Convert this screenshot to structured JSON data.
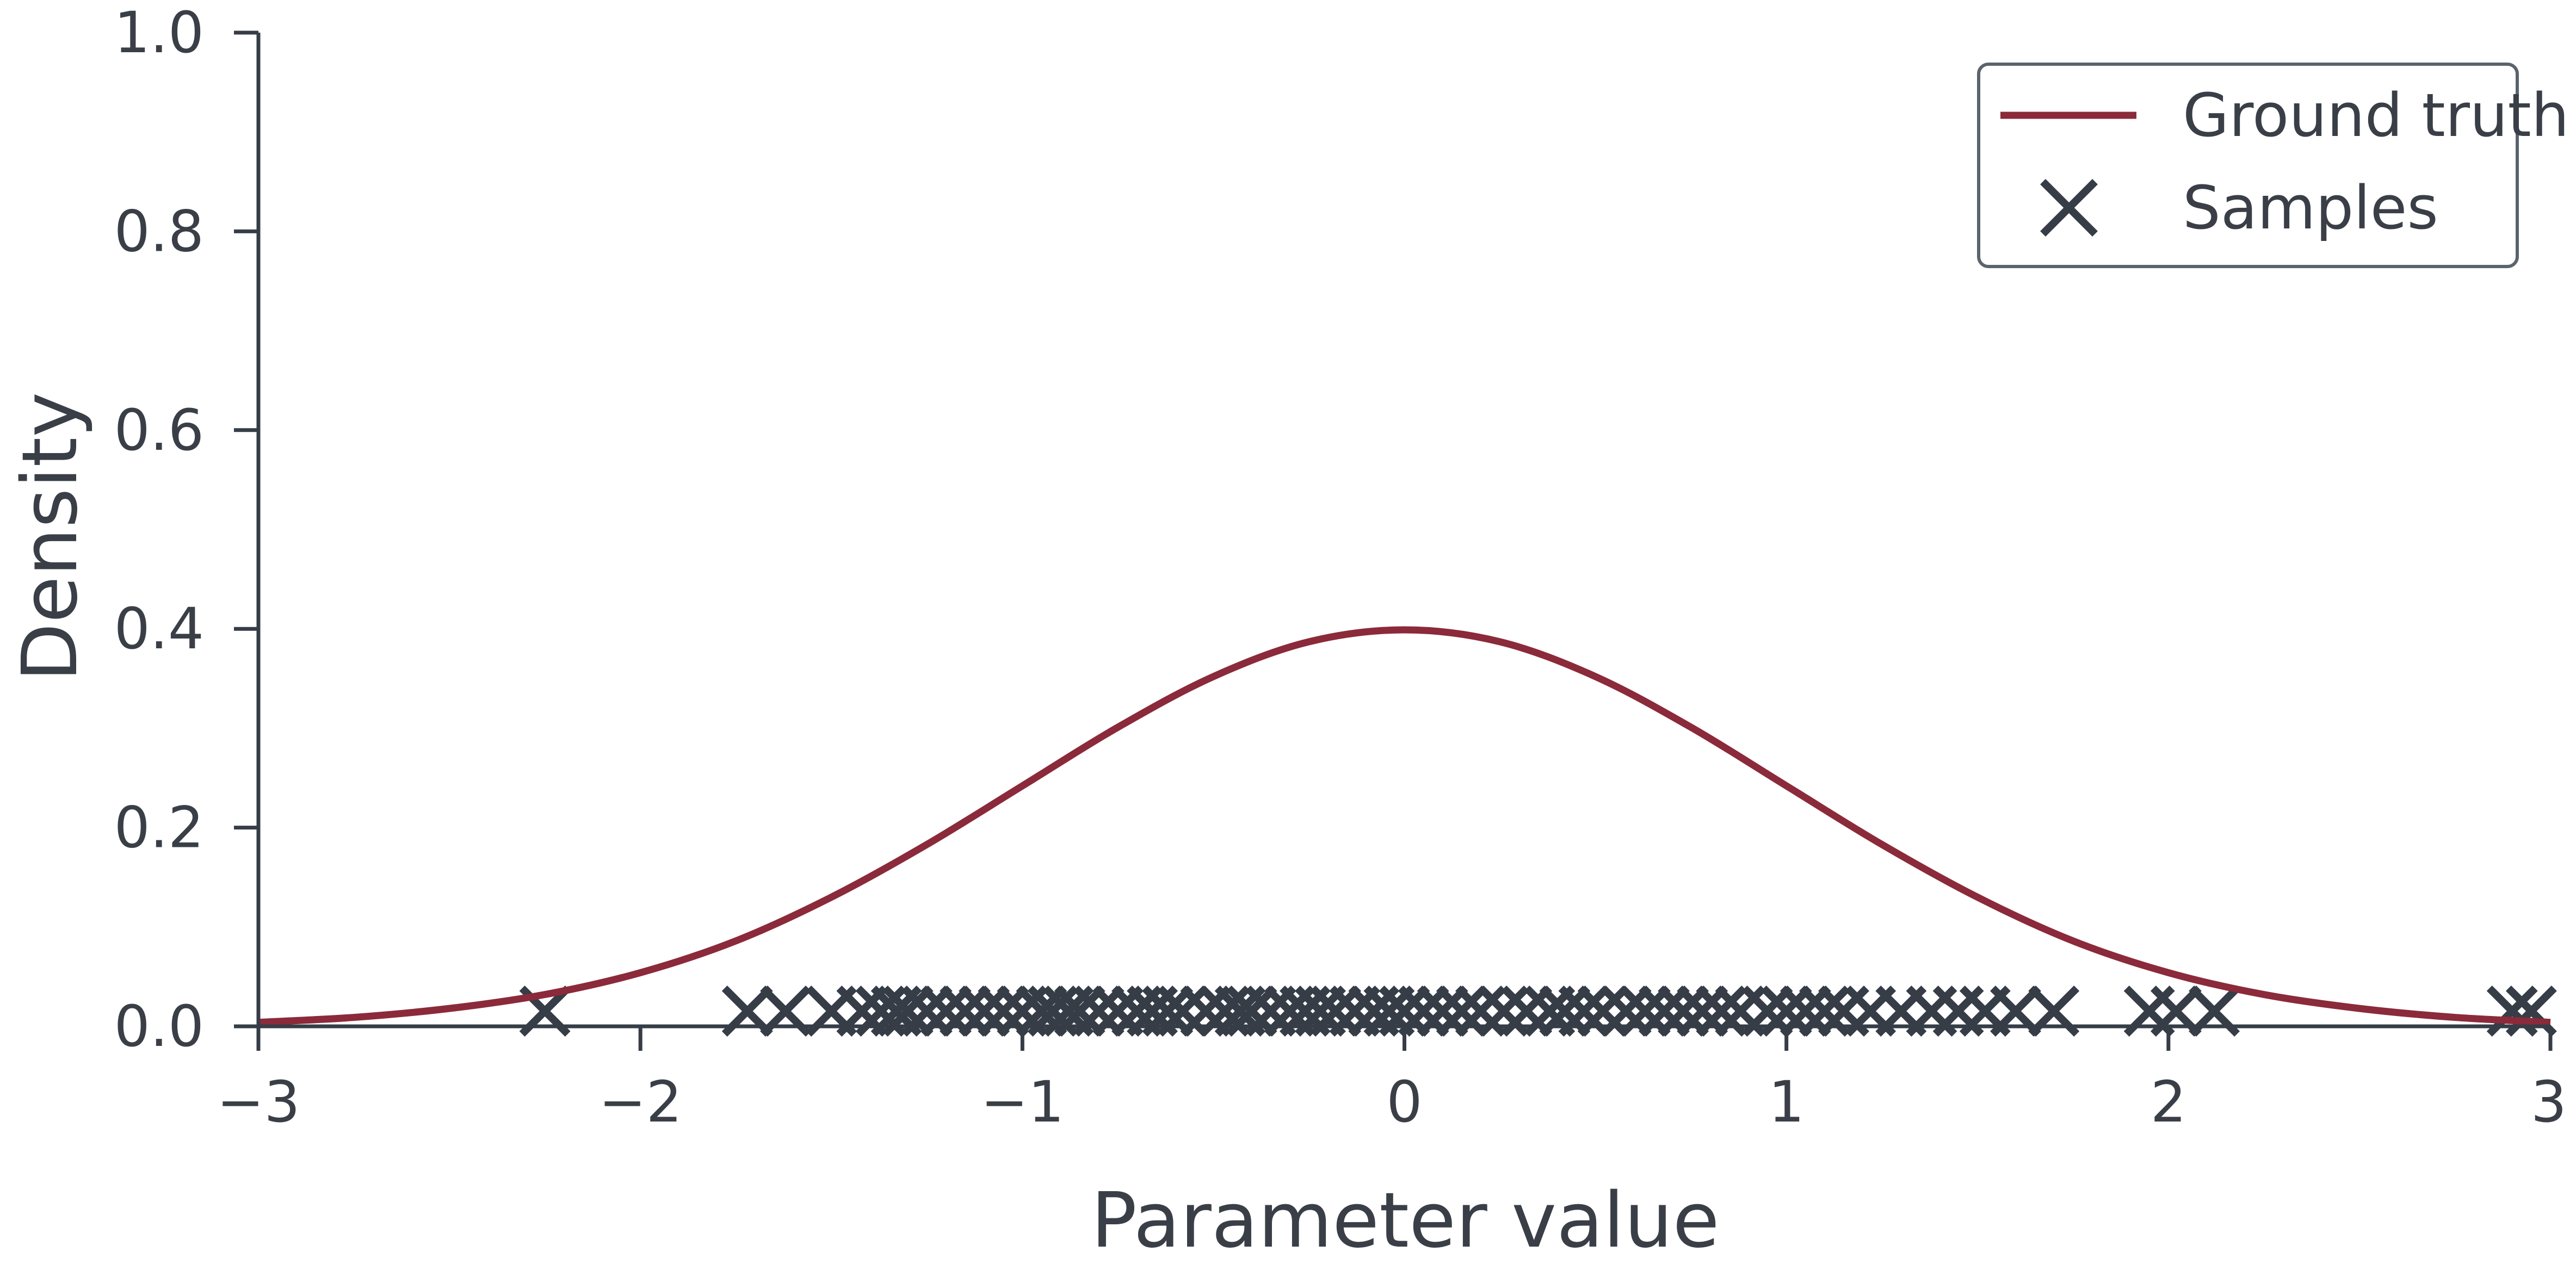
{
  "chart_data": {
    "type": "line",
    "xlabel": "Parameter value",
    "ylabel": "Density",
    "xlim": [
      -3,
      3
    ],
    "ylim": [
      0,
      1.0
    ],
    "x_ticks": [
      -3,
      -2,
      -1,
      0,
      1,
      2,
      3
    ],
    "x_tick_labels": [
      "−3",
      "−2",
      "−1",
      "0",
      "1",
      "2",
      "3"
    ],
    "y_ticks": [
      0.0,
      0.2,
      0.4,
      0.6,
      0.8,
      1.0
    ],
    "y_tick_labels": [
      "0.0",
      "0.2",
      "0.4",
      "0.6",
      "0.8",
      "1.0"
    ],
    "grid": false,
    "legend_position": "top-right",
    "series": [
      {
        "name": "Ground truth",
        "type": "line",
        "color": "#8b2a3a",
        "x": [
          -3.0,
          -2.75,
          -2.5,
          -2.25,
          -2.0,
          -1.75,
          -1.5,
          -1.25,
          -1.0,
          -0.75,
          -0.5,
          -0.25,
          0.0,
          0.25,
          0.5,
          0.75,
          1.0,
          1.25,
          1.5,
          1.75,
          2.0,
          2.25,
          2.5,
          2.75,
          3.0
        ],
        "y": [
          0.004,
          0.009,
          0.018,
          0.032,
          0.054,
          0.086,
          0.13,
          0.183,
          0.242,
          0.301,
          0.352,
          0.387,
          0.399,
          0.387,
          0.352,
          0.301,
          0.242,
          0.183,
          0.13,
          0.086,
          0.054,
          0.032,
          0.018,
          0.009,
          0.004
        ]
      },
      {
        "name": "Samples",
        "type": "scatter",
        "marker": "x",
        "color": "#363d47",
        "x": [
          -2.25,
          -1.72,
          -1.62,
          -1.5,
          -1.42,
          -1.37,
          -1.33,
          -1.3,
          -1.25,
          -1.2,
          -1.15,
          -1.1,
          -1.05,
          -1.0,
          -0.95,
          -0.92,
          -0.88,
          -0.85,
          -0.8,
          -0.75,
          -0.7,
          -0.66,
          -0.62,
          -0.58,
          -0.52,
          -0.47,
          -0.43,
          -0.4,
          -0.35,
          -0.3,
          -0.26,
          -0.22,
          -0.18,
          -0.13,
          -0.08,
          -0.04,
          0.0,
          0.05,
          0.1,
          0.15,
          0.2,
          0.26,
          0.32,
          0.38,
          0.42,
          0.47,
          0.52,
          0.58,
          0.63,
          0.68,
          0.73,
          0.78,
          0.83,
          0.88,
          0.95,
          1.0,
          1.05,
          1.1,
          1.15,
          1.22,
          1.3,
          1.38,
          1.45,
          1.52,
          1.6,
          1.7,
          1.95,
          2.02,
          2.12,
          2.9,
          2.95
        ],
        "y": [
          0,
          0,
          0,
          0,
          0,
          0,
          0,
          0,
          0,
          0,
          0,
          0,
          0,
          0,
          0,
          0,
          0,
          0,
          0,
          0,
          0,
          0,
          0,
          0,
          0,
          0,
          0,
          0,
          0,
          0,
          0,
          0,
          0,
          0,
          0,
          0,
          0,
          0,
          0,
          0,
          0,
          0,
          0,
          0,
          0,
          0,
          0,
          0,
          0,
          0,
          0,
          0,
          0,
          0,
          0,
          0,
          0,
          0,
          0,
          0,
          0,
          0,
          0,
          0,
          0,
          0,
          0,
          0,
          0,
          0,
          0
        ]
      }
    ]
  }
}
